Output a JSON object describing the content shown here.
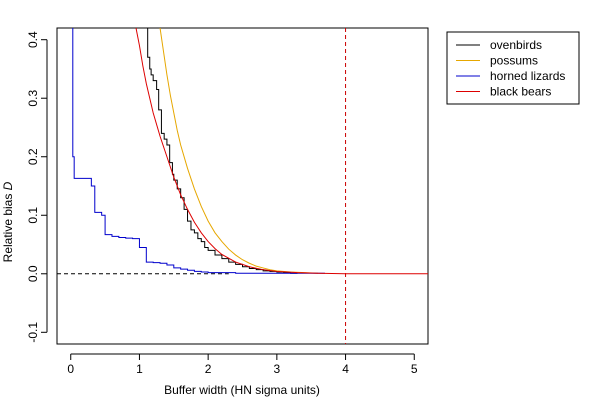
{
  "chart_data": {
    "type": "line",
    "xlabel": "Buffer width (HN sigma units)",
    "ylabel": "Relative bias",
    "ylabel_symbol": "D",
    "xlim": [
      -0.2,
      5.2
    ],
    "ylim": [
      -0.12,
      0.42
    ],
    "x_ticks": [
      0,
      1,
      2,
      3,
      4,
      5
    ],
    "x_tick_labels": [
      "0",
      "1",
      "2",
      "3",
      "4",
      "5"
    ],
    "y_ticks": [
      -0.1,
      0.0,
      0.1,
      0.2,
      0.3,
      0.4
    ],
    "y_tick_labels": [
      "-0.1",
      "0.0",
      "0.1",
      "0.2",
      "0.3",
      "0.4"
    ],
    "grid": false,
    "legend_position": "top-right outside plot",
    "reference_lines": [
      {
        "orientation": "horizontal",
        "value": 0.0,
        "x_to": 2.3,
        "color": "#000000",
        "dash": "dashed"
      },
      {
        "orientation": "vertical",
        "value": 4.0,
        "color": "#cc0000",
        "dash": "dashed"
      }
    ],
    "series": [
      {
        "name": "ovenbirds",
        "color": "#000000",
        "step": true,
        "x": [
          1.1,
          1.12,
          1.15,
          1.17,
          1.2,
          1.25,
          1.28,
          1.32,
          1.36,
          1.4,
          1.44,
          1.48,
          1.5,
          1.55,
          1.6,
          1.65,
          1.7,
          1.75,
          1.8,
          1.85,
          1.9,
          1.95,
          2.0,
          2.1,
          2.2,
          2.3,
          2.4,
          2.5,
          2.6,
          2.7,
          2.8,
          2.9,
          3.0,
          3.1,
          3.2,
          3.3
        ],
        "y": [
          0.42,
          0.37,
          0.35,
          0.34,
          0.33,
          0.315,
          0.28,
          0.24,
          0.23,
          0.22,
          0.19,
          0.17,
          0.16,
          0.145,
          0.13,
          0.11,
          0.09,
          0.075,
          0.07,
          0.06,
          0.055,
          0.045,
          0.04,
          0.032,
          0.026,
          0.02,
          0.016,
          0.012,
          0.009,
          0.007,
          0.005,
          0.004,
          0.003,
          0.002,
          0.001,
          0.001
        ]
      },
      {
        "name": "possums",
        "color": "#e6a700",
        "step": false,
        "x": [
          1.3,
          1.35,
          1.4,
          1.45,
          1.5,
          1.55,
          1.6,
          1.7,
          1.8,
          1.9,
          2.0,
          2.1,
          2.2,
          2.3,
          2.4,
          2.5,
          2.6,
          2.7,
          2.8,
          2.9,
          3.0,
          3.2,
          3.4,
          3.6
        ],
        "y": [
          0.42,
          0.38,
          0.34,
          0.305,
          0.275,
          0.245,
          0.22,
          0.18,
          0.145,
          0.115,
          0.09,
          0.07,
          0.055,
          0.042,
          0.032,
          0.024,
          0.018,
          0.013,
          0.01,
          0.007,
          0.005,
          0.003,
          0.002,
          0.001
        ]
      },
      {
        "name": "horned lizards",
        "color": "#0000cc",
        "step": true,
        "x": [
          0.02,
          0.03,
          0.05,
          0.3,
          0.35,
          0.45,
          0.5,
          0.6,
          0.7,
          0.8,
          0.9,
          1.0,
          1.1,
          1.2,
          1.3,
          1.4,
          1.5,
          1.6,
          1.7,
          1.8,
          1.9,
          2.0,
          2.2,
          2.4,
          2.6,
          2.8,
          3.0,
          3.3,
          3.7
        ],
        "y": [
          0.42,
          0.2,
          0.163,
          0.15,
          0.105,
          0.1,
          0.067,
          0.064,
          0.062,
          0.061,
          0.06,
          0.045,
          0.02,
          0.019,
          0.018,
          0.015,
          0.01,
          0.008,
          0.006,
          0.004,
          0.003,
          0.002,
          0.002,
          0.001,
          0.001,
          0.001,
          0.001,
          0.001,
          0.001
        ]
      },
      {
        "name": "black bears",
        "color": "#dd0000",
        "step": false,
        "x": [
          0.95,
          1.0,
          1.05,
          1.1,
          1.15,
          1.2,
          1.3,
          1.4,
          1.5,
          1.6,
          1.7,
          1.8,
          1.9,
          2.0,
          2.1,
          2.2,
          2.4,
          2.6,
          2.8,
          3.0,
          3.3,
          3.6,
          4.0,
          4.5,
          5.2
        ],
        "y": [
          0.42,
          0.39,
          0.355,
          0.325,
          0.3,
          0.275,
          0.235,
          0.2,
          0.165,
          0.135,
          0.11,
          0.088,
          0.07,
          0.055,
          0.043,
          0.033,
          0.02,
          0.012,
          0.007,
          0.004,
          0.002,
          0.001,
          0.0,
          0.0,
          0.0
        ]
      }
    ]
  }
}
